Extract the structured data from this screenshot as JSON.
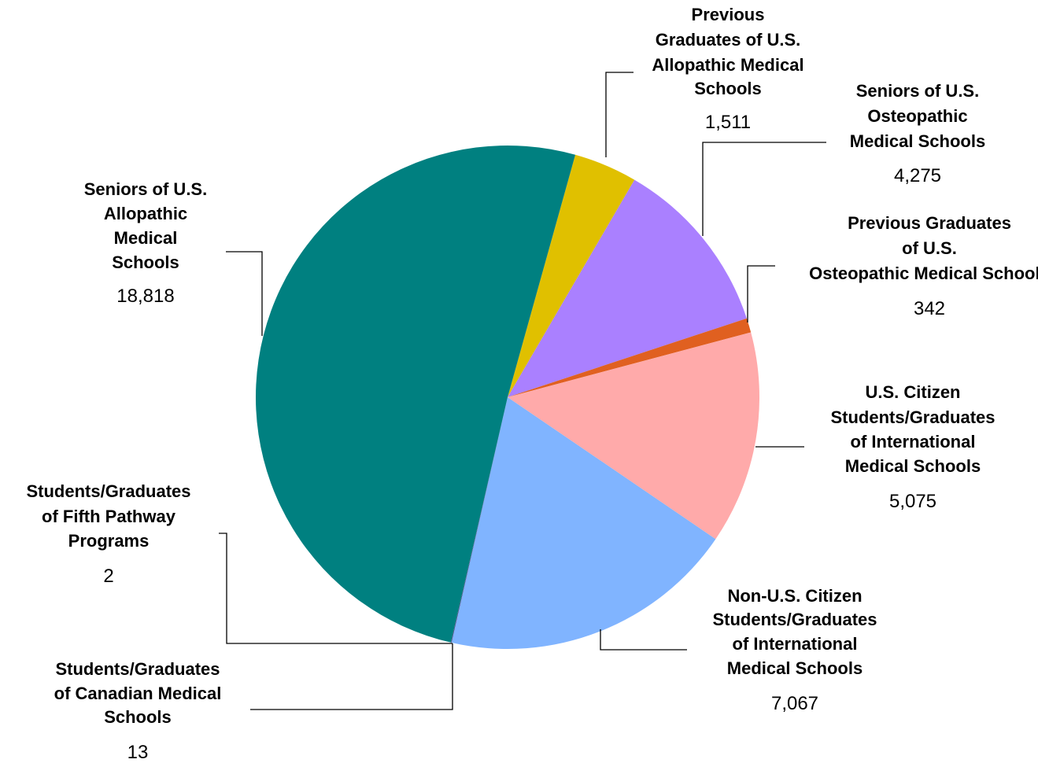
{
  "chart_data": {
    "type": "pie",
    "categories": [
      "Previous Graduates of U.S. Allopathic Medical Schools",
      "Seniors of U.S. Osteopathic Medical Schools",
      "Previous Graduates of U.S. Osteopathic Medical Schools",
      "U.S. Citizen Students/Graduates of International Medical Schools",
      "Non-U.S. Citizen Students/Graduates of International Medical Schools",
      "Students/Graduates of Canadian Medical Schools",
      "Students/Graduates of Fifth Pathway Programs",
      "Seniors of U.S. Allopathic Medical Schools"
    ],
    "values": [
      1511,
      4275,
      342,
      5075,
      7067,
      13,
      2,
      18818
    ],
    "value_labels": [
      "1,511",
      "4,275",
      "342",
      "5,075",
      "7,067",
      "13",
      "2",
      "18,818"
    ],
    "colors": [
      "#e0c000",
      "#aa80ff",
      "#e06020",
      "#ffaaaa",
      "#80b4ff",
      "#404080",
      "#800040",
      "#008080"
    ]
  }
}
